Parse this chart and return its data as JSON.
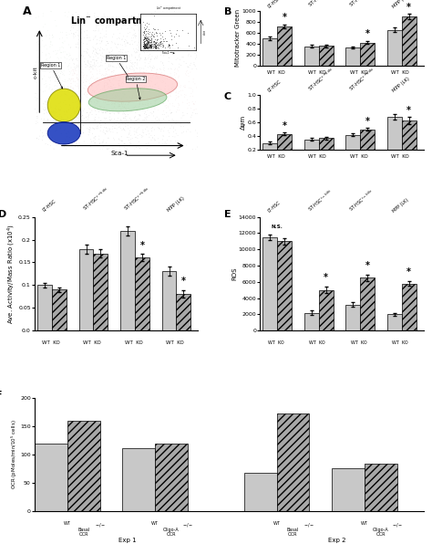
{
  "panel_B": {
    "ylabel": "Mitotracker Green",
    "groups": [
      "LT-HSC",
      "ST-HSC$^{c-kit hi}$",
      "ST-HSC$^{c-kit lo}$",
      "MPP (LK)"
    ],
    "wt_values": [
      500,
      350,
      330,
      650
    ],
    "ko_values": [
      720,
      360,
      420,
      900
    ],
    "wt_err": [
      30,
      25,
      20,
      40
    ],
    "ko_err": [
      35,
      25,
      30,
      50
    ],
    "ylim": [
      0,
      1000
    ],
    "yticks": [
      0,
      200,
      400,
      600,
      800,
      1000
    ],
    "significant": [
      true,
      false,
      true,
      true
    ]
  },
  "panel_C": {
    "ylabel": "Δψm",
    "groups": [
      "LT-HSC",
      "ST-HSC$^{c-kit hi}$",
      "ST-HSC$^{c-kit lo}$",
      "MPP (LK)"
    ],
    "wt_values": [
      0.3,
      0.35,
      0.42,
      0.68
    ],
    "ko_values": [
      0.43,
      0.37,
      0.5,
      0.63
    ],
    "wt_err": [
      0.02,
      0.02,
      0.02,
      0.04
    ],
    "ko_err": [
      0.02,
      0.02,
      0.02,
      0.05
    ],
    "ylim": [
      0.2,
      1.0
    ],
    "yticks": [
      0.2,
      0.4,
      0.6,
      0.8,
      1.0
    ],
    "significant": [
      true,
      false,
      true,
      true
    ]
  },
  "panel_D": {
    "ylabel": "Ave. Activity/Mass Ratio (x10$^{4}$)",
    "groups": [
      "LT-HSC",
      "ST-HSC$^{c-kit hi}$",
      "ST-HSC$^{c-kit lo}$",
      "MPP (LK)"
    ],
    "wt_values": [
      0.1,
      0.18,
      0.22,
      0.13
    ],
    "ko_values": [
      0.09,
      0.17,
      0.16,
      0.08
    ],
    "wt_err": [
      0.005,
      0.01,
      0.01,
      0.01
    ],
    "ko_err": [
      0.005,
      0.01,
      0.008,
      0.008
    ],
    "ylim": [
      0.0,
      0.25
    ],
    "yticks": [
      0.0,
      0.05,
      0.1,
      0.15,
      0.2,
      0.25
    ],
    "significant": [
      false,
      false,
      true,
      true
    ]
  },
  "panel_E": {
    "ylabel": "ROS",
    "groups": [
      "LT-HSC",
      "ST-HSC$^{c-kit hi}$",
      "ST-HSC$^{c-kit lo}$",
      "MPP (LK)"
    ],
    "wt_values": [
      11500,
      2200,
      3200,
      2000
    ],
    "ko_values": [
      11000,
      5000,
      6500,
      5800
    ],
    "wt_err": [
      300,
      300,
      300,
      200
    ],
    "ko_err": [
      400,
      400,
      400,
      300
    ],
    "ylim": [
      0,
      14000
    ],
    "yticks": [
      0,
      2000,
      4000,
      6000,
      8000,
      10000,
      12000,
      14000
    ],
    "significant": [
      false,
      true,
      true,
      true
    ]
  },
  "panel_F": {
    "ylabel": "OCR (pMoles/min/10$^5$ cells)",
    "exp1_basal_wt": 120,
    "exp1_basal_ko": 160,
    "exp1_oligo_wt": 112,
    "exp1_oligo_ko": 120,
    "exp2_basal_wt": 68,
    "exp2_basal_ko": 172,
    "exp2_oligo_wt": 76,
    "exp2_oligo_ko": 84,
    "ylim": [
      0,
      200
    ],
    "yticks": [
      0,
      50,
      100,
      150,
      200
    ]
  },
  "wt_color": "#c8c8c8",
  "ko_color": "#a8a8a8",
  "ko_hatch": "////",
  "bar_width": 0.32
}
